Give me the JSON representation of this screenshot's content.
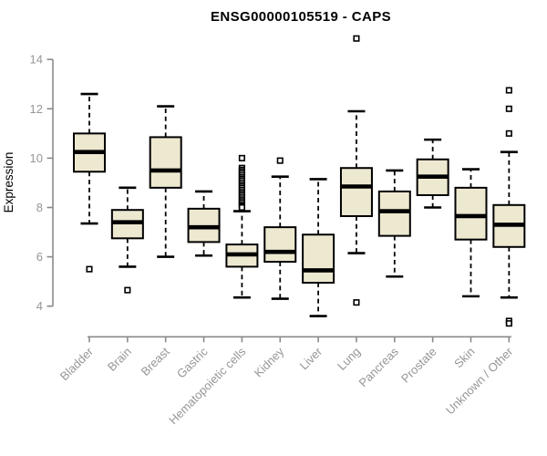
{
  "colors": {
    "background": "#ffffff",
    "box_fill": "#ede8d0",
    "box_border": "#000000",
    "median": "#000000",
    "whisker": "#000000",
    "outlier_fill": "#ffffff",
    "axis_line": "#8a8a8a",
    "axis_text": "#969696",
    "title_text": "#000000"
  },
  "chart_data": {
    "type": "boxplot",
    "title": "ENSG00000105519 - CAPS",
    "xlabel": "",
    "ylabel": "Expression",
    "ylim": [
      4,
      14
    ],
    "yticks": [
      4,
      6,
      8,
      10,
      12,
      14
    ],
    "grid": false,
    "legend": "none",
    "categories": [
      "Bladder",
      "Brain",
      "Breast",
      "Gastric",
      "Hematopoietic cells",
      "Kidney",
      "Liver",
      "Lung",
      "Pancreas",
      "Prostate",
      "Skin",
      "Unknown / Other"
    ],
    "boxes": [
      {
        "label": "Bladder",
        "whisker_low": 7.35,
        "q1": 9.45,
        "median": 10.25,
        "q3": 11.0,
        "whisker_high": 12.6,
        "outliers": [
          5.5
        ]
      },
      {
        "label": "Brain",
        "whisker_low": 5.6,
        "q1": 6.75,
        "median": 7.4,
        "q3": 7.9,
        "whisker_high": 8.8,
        "outliers": [
          4.65
        ]
      },
      {
        "label": "Breast",
        "whisker_low": 6.0,
        "q1": 8.8,
        "median": 9.5,
        "q3": 10.85,
        "whisker_high": 12.1,
        "outliers": []
      },
      {
        "label": "Gastric",
        "whisker_low": 6.05,
        "q1": 6.6,
        "median": 7.2,
        "q3": 7.95,
        "whisker_high": 8.65,
        "outliers": []
      },
      {
        "label": "Hematopoietic cells",
        "whisker_low": 4.35,
        "q1": 5.6,
        "median": 6.1,
        "q3": 6.5,
        "whisker_high": 7.85,
        "outliers": [
          10.0,
          9.6,
          9.52,
          9.45,
          9.38,
          9.3,
          9.22,
          9.15,
          9.08,
          9.0,
          8.92,
          8.85,
          8.78,
          8.7,
          8.62,
          8.55,
          8.48,
          8.4,
          8.32,
          8.25,
          8.18,
          8.1,
          8.05,
          8.0
        ]
      },
      {
        "label": "Kidney",
        "whisker_low": 4.3,
        "q1": 5.8,
        "median": 6.2,
        "q3": 7.2,
        "whisker_high": 9.25,
        "outliers": [
          9.9
        ]
      },
      {
        "label": "Liver",
        "whisker_low": 3.6,
        "q1": 4.95,
        "median": 5.45,
        "q3": 6.9,
        "whisker_high": 9.15,
        "outliers": []
      },
      {
        "label": "Lung",
        "whisker_low": 6.15,
        "q1": 7.65,
        "median": 8.85,
        "q3": 9.6,
        "whisker_high": 11.9,
        "outliers": [
          14.85,
          4.15
        ]
      },
      {
        "label": "Pancreas",
        "whisker_low": 5.2,
        "q1": 6.85,
        "median": 7.85,
        "q3": 8.65,
        "whisker_high": 9.5,
        "outliers": []
      },
      {
        "label": "Prostate",
        "whisker_low": 8.0,
        "q1": 8.5,
        "median": 9.25,
        "q3": 9.95,
        "whisker_high": 10.75,
        "outliers": []
      },
      {
        "label": "Skin",
        "whisker_low": 4.4,
        "q1": 6.7,
        "median": 7.65,
        "q3": 8.8,
        "whisker_high": 9.55,
        "outliers": []
      },
      {
        "label": "Unknown / Other",
        "whisker_low": 4.35,
        "q1": 6.4,
        "median": 7.3,
        "q3": 8.1,
        "whisker_high": 10.25,
        "outliers": [
          12.75,
          12.0,
          11.0,
          3.4,
          3.3
        ]
      }
    ]
  }
}
